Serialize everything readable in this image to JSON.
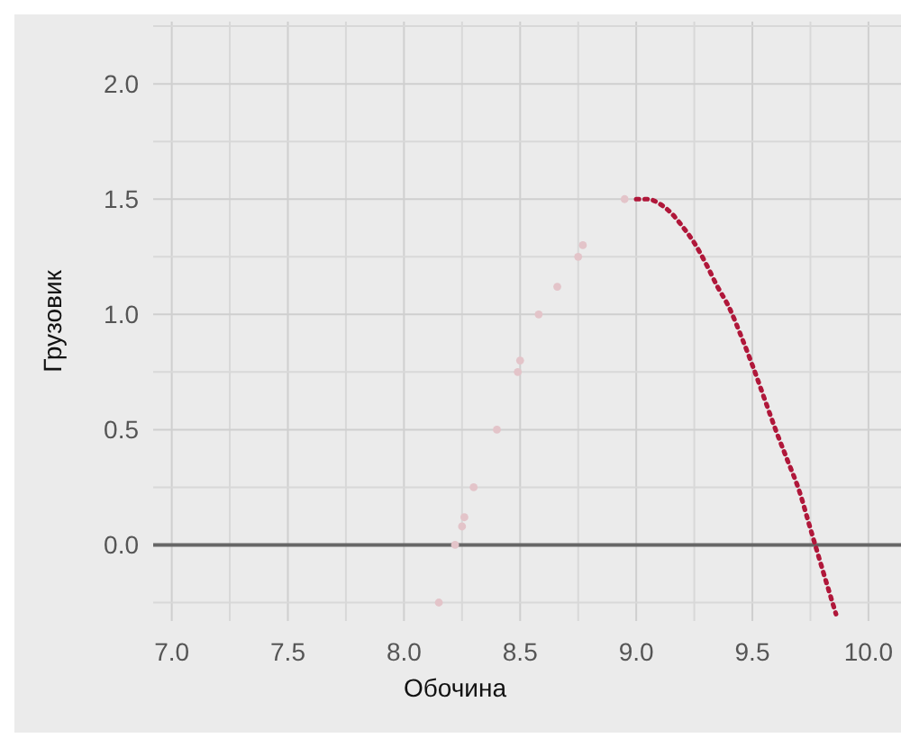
{
  "chart_data": {
    "type": "scatter",
    "xlabel": "Обочина",
    "ylabel": "Грузовик",
    "xlim": [
      6.92,
      10.14
    ],
    "ylim": [
      -0.33,
      2.27
    ],
    "xticks": [
      {
        "value": 7,
        "label": "7.0"
      },
      {
        "value": 7.25,
        "label": null
      },
      {
        "value": 7.5,
        "label": "7.5"
      },
      {
        "value": 7.75,
        "label": null
      },
      {
        "value": 8,
        "label": "8.0"
      },
      {
        "value": 8.25,
        "label": null
      },
      {
        "value": 8.5,
        "label": "8.5"
      },
      {
        "value": 8.75,
        "label": null
      },
      {
        "value": 9,
        "label": "9.0"
      },
      {
        "value": 9.25,
        "label": null
      },
      {
        "value": 9.5,
        "label": "9.5"
      },
      {
        "value": 9.75,
        "label": null
      },
      {
        "value": 10,
        "label": "10.0"
      }
    ],
    "yticks": [
      {
        "value": -0.25,
        "label": null
      },
      {
        "value": 0,
        "label": "0.0"
      },
      {
        "value": 0.25,
        "label": null
      },
      {
        "value": 0.5,
        "label": "0.5"
      },
      {
        "value": 0.75,
        "label": null
      },
      {
        "value": 1,
        "label": "1.0"
      },
      {
        "value": 1.25,
        "label": null
      },
      {
        "value": 1.5,
        "label": "1.5"
      },
      {
        "value": 1.75,
        "label": null
      },
      {
        "value": 2,
        "label": "2.0"
      },
      {
        "value": 2.25,
        "label": null
      }
    ],
    "grid": true,
    "ref_lines": [
      {
        "axis": "y",
        "value": 0,
        "color": "#666666"
      }
    ],
    "series": [
      {
        "color": "#e3c4c9",
        "marker": "circle",
        "x": [
          8.15,
          8.22,
          8.25,
          8.26,
          8.3,
          8.4,
          8.49,
          8.5,
          8.58,
          8.66,
          8.75,
          8.77,
          8.95
        ],
        "values": [
          -0.25,
          0,
          0.08,
          0.12,
          0.25,
          0.5,
          0.75,
          0.8,
          1,
          1.12,
          1.25,
          1.3,
          1.5
        ]
      },
      {
        "type": "line",
        "color": "#b0173a",
        "line_style": "dotted",
        "x": [
          9,
          9.05,
          9.1,
          9.15,
          9.2,
          9.25,
          9.3,
          9.35,
          9.4,
          9.45,
          9.5,
          9.55,
          9.6,
          9.65,
          9.7,
          9.75,
          9.8,
          9.86
        ],
        "values": [
          1.5,
          1.5,
          1.48,
          1.44,
          1.38,
          1.31,
          1.22,
          1.12,
          1.03,
          0.91,
          0.78,
          0.64,
          0.5,
          0.37,
          0.24,
          0.07,
          -0.1,
          -0.3
        ]
      }
    ]
  }
}
